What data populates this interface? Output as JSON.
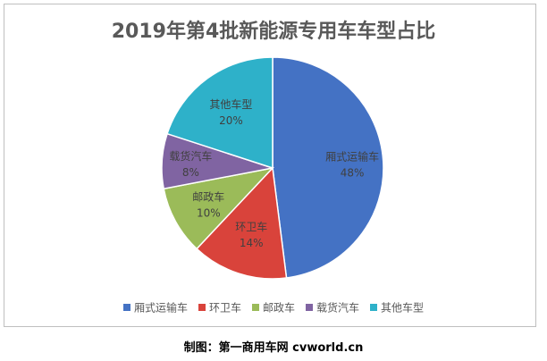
{
  "chart_data": {
    "type": "pie",
    "title": "2019年第4批新能源专用车车型占比",
    "categories": [
      "厢式运输车",
      "环卫车",
      "邮政车",
      "载货汽车",
      "其他车型"
    ],
    "values": [
      48,
      14,
      10,
      8,
      20
    ],
    "value_labels": [
      "48%",
      "14%",
      "10%",
      "8%",
      "20%"
    ],
    "colors": [
      "#4472C4",
      "#D9433B",
      "#9BBB59",
      "#8064A2",
      "#2EB1C9"
    ],
    "start": "12 o'clock",
    "direction": "clockwise",
    "legend": {
      "position": "bottom",
      "entries": [
        "厢式运输车",
        "环卫车",
        "邮政车",
        "载货汽车",
        "其他车型"
      ]
    }
  },
  "caption": "制图：第一商用车网 cvworld.cn"
}
